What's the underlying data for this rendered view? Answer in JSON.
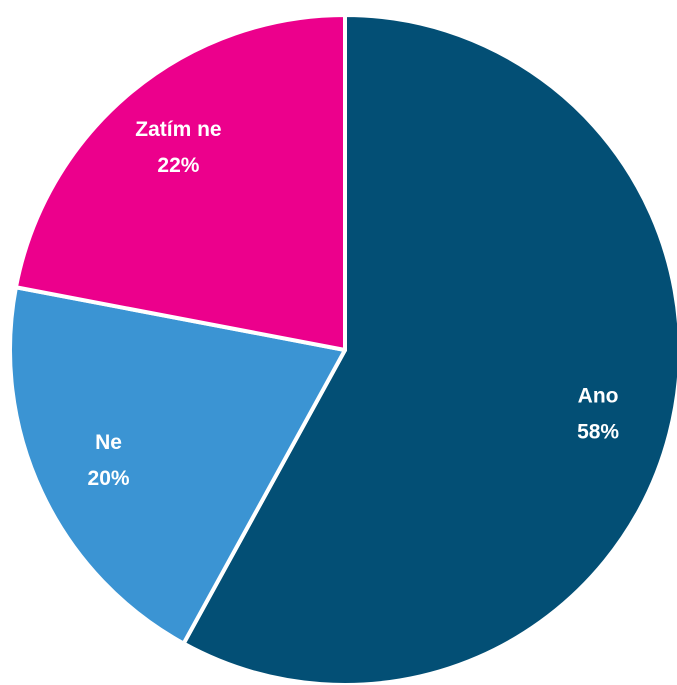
{
  "chart_data": {
    "type": "pie",
    "categories": [
      "Ano",
      "Ne",
      "Zatím ne"
    ],
    "values": [
      58,
      20,
      22
    ],
    "value_labels": [
      "58%",
      "20%",
      "22%"
    ],
    "colors": [
      "#034f75",
      "#3b94d3",
      "#ec008c"
    ]
  }
}
